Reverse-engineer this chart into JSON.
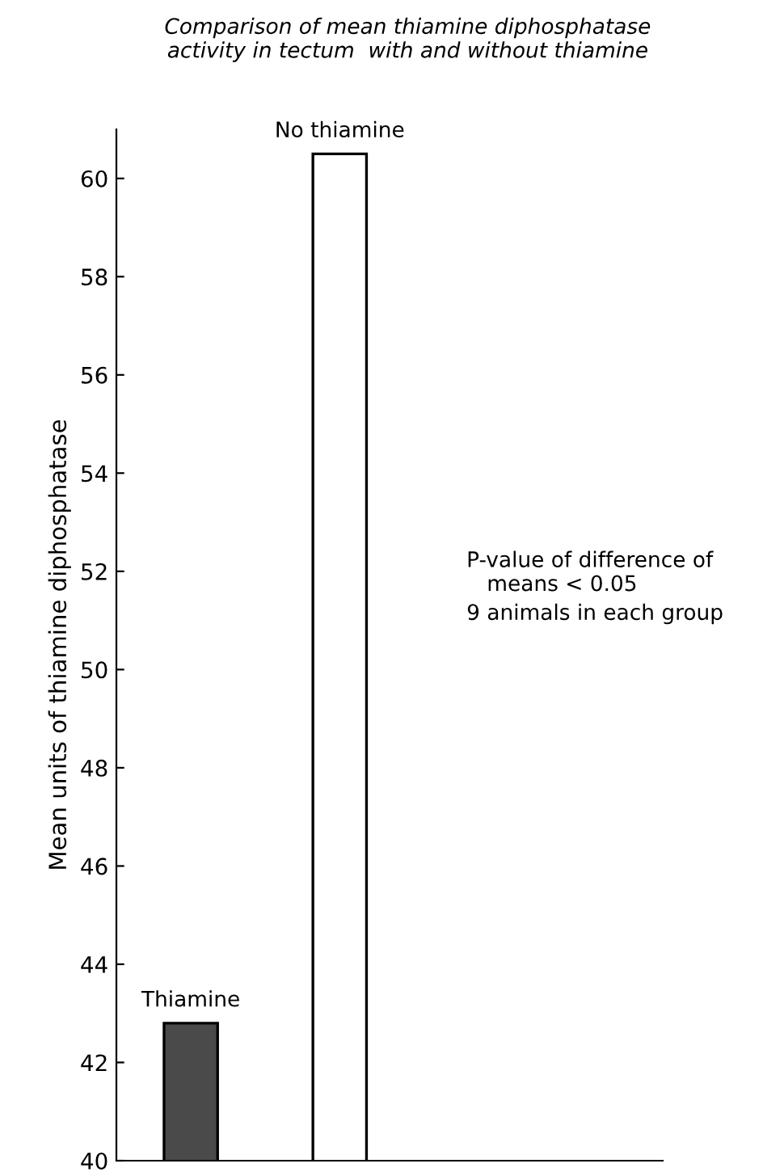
{
  "chart_data": {
    "type": "bar",
    "title": "Comparison of mean thiamine diphosphatase\nactivity in tectum  with and without thiamine",
    "ylabel": "Mean units of thiamine diphosphatase",
    "categories": [
      "Thiamine",
      "No thiamine"
    ],
    "values": [
      42.8,
      60.5
    ],
    "colors": [
      "#4a4a4a",
      "#ffffff"
    ],
    "ylim": [
      40,
      61
    ],
    "yticks": [
      40,
      42,
      44,
      46,
      48,
      50,
      52,
      54,
      56,
      58,
      60
    ],
    "grid": false,
    "annotations": [
      "P-value of difference of\n   means < 0.05",
      "9 animals in each group"
    ]
  }
}
